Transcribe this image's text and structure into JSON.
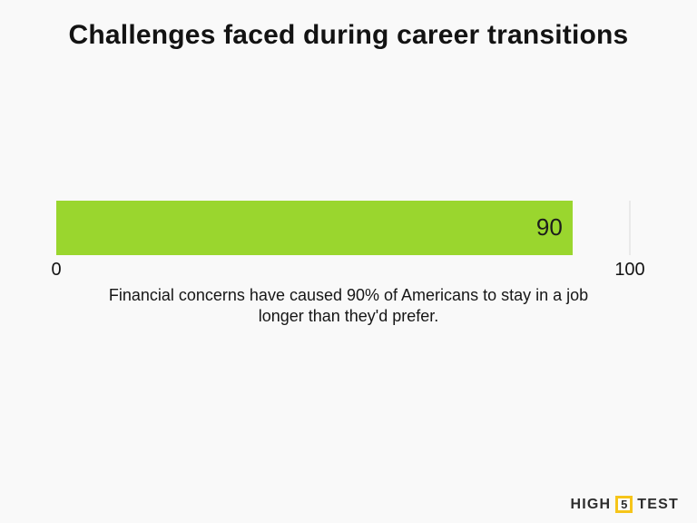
{
  "title": "Challenges faced during career transitions",
  "chart_data": {
    "type": "bar",
    "orientation": "horizontal",
    "title": "Challenges faced during career transitions",
    "categories": [
      ""
    ],
    "values": [
      90
    ],
    "value_labels": [
      "90"
    ],
    "xlim": [
      0,
      100
    ],
    "x_ticks": [
      {
        "value": 0,
        "label": "0"
      },
      {
        "value": 100,
        "label": "100"
      }
    ],
    "gridline_at": 100,
    "grid": "single faint vertical tick line at 100",
    "legend": "none",
    "bar_color": "#9ad62e",
    "annotation": "Financial concerns have caused 90% of Americans to stay in a job longer than they'd prefer."
  },
  "caption": {
    "lines": [
      "Financial concerns have caused 90% of Americans to stay in a job",
      "longer than they'd prefer."
    ]
  },
  "footer": {
    "brand_left": "HIGH",
    "brand_number": "5",
    "brand_right": "TEST",
    "accent_color": "#f6c51a"
  },
  "colors": {
    "background": "#f9f9f9",
    "bar": "#9ad62e",
    "text": "#131313",
    "gridline": "#eaeaea"
  }
}
